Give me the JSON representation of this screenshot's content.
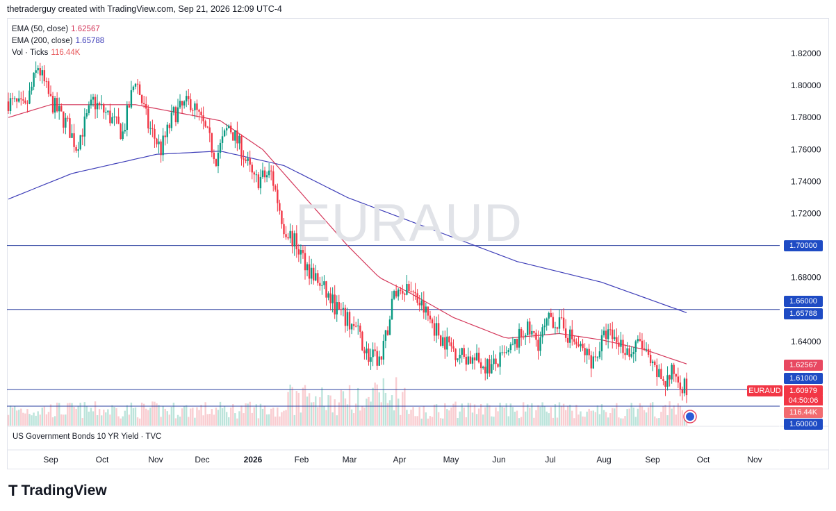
{
  "header": {
    "text": "thetraderguy created with TradingView.com, Sep 21, 2026 12:09 UTC-4"
  },
  "legend": [
    {
      "label": "EMA (50, close)",
      "value": "1.62567",
      "color": "#d4375a"
    },
    {
      "label": "EMA (200, close)",
      "value": "1.65788",
      "color": "#3d3db8"
    },
    {
      "label": "Vol · Ticks",
      "value": "116.44K",
      "color": "#e8575a"
    }
  ],
  "watermark": "EURAUD",
  "lower_pane_label": "US Government Bonds 10 YR Yield · TVC",
  "footer": {
    "brand": "TradingView"
  },
  "colors": {
    "up": "#089981",
    "down": "#f23645",
    "ema50": "#d4375a",
    "ema200": "#3d3db8",
    "hline": "#2a3f9f"
  },
  "price_tags": [
    {
      "name": "tag-1.70000",
      "text": "1.70000",
      "bg": "#1e4bc4",
      "price": 1.7
    },
    {
      "name": "tag-1.66000",
      "text": "1.66000",
      "bg": "#1e4bc4",
      "price": 1.66
    },
    {
      "name": "tag-1.65788",
      "text": "1.65788",
      "bg": "#1e4bc4",
      "price": 1.65788
    },
    {
      "name": "tag-1.62567",
      "text": "1.62567",
      "bg": "#e84861",
      "price": 1.62567
    },
    {
      "name": "tag-1.61000",
      "text": "1.61000",
      "bg": "#1e4bc4",
      "price": 1.61
    },
    {
      "name": "tag-1.60979",
      "text": "1.60979",
      "bg": "#f23645",
      "price": 1.60979
    },
    {
      "name": "tag-1.60000",
      "text": "1.60000",
      "bg": "#1e4bc4",
      "price": 1.6
    }
  ],
  "symbol_tag": "EURAUD",
  "countdown": "04:50:06",
  "volume_tag": "116.44K",
  "chart_data": {
    "type": "candlestick",
    "symbol": "EURAUD",
    "ylim": [
      1.6,
      1.83
    ],
    "y_ticks": [
      "1.82000",
      "1.80000",
      "1.78000",
      "1.76000",
      "1.74000",
      "1.72000",
      "1.68000",
      "1.64000"
    ],
    "x_ticks": [
      "Sep",
      "Oct",
      "Nov",
      "Dec",
      "2026",
      "Feb",
      "Mar",
      "Apr",
      "May",
      "Jun",
      "Jul",
      "Aug",
      "Sep",
      "Oct",
      "Nov"
    ],
    "x_ticks_bold": [
      "2026"
    ],
    "horizontal_lines": [
      1.7,
      1.66,
      1.61,
      1.6
    ],
    "anchors": [
      {
        "t": 0,
        "p": 1.79
      },
      {
        "t": 8,
        "p": 1.785
      },
      {
        "t": 14,
        "p": 1.812
      },
      {
        "t": 20,
        "p": 1.79
      },
      {
        "t": 28,
        "p": 1.775
      },
      {
        "t": 32,
        "p": 1.762
      },
      {
        "t": 40,
        "p": 1.79
      },
      {
        "t": 48,
        "p": 1.78
      },
      {
        "t": 54,
        "p": 1.77
      },
      {
        "t": 60,
        "p": 1.805
      },
      {
        "t": 66,
        "p": 1.775
      },
      {
        "t": 72,
        "p": 1.76
      },
      {
        "t": 78,
        "p": 1.782
      },
      {
        "t": 86,
        "p": 1.79
      },
      {
        "t": 92,
        "p": 1.775
      },
      {
        "t": 98,
        "p": 1.755
      },
      {
        "t": 104,
        "p": 1.775
      },
      {
        "t": 110,
        "p": 1.76
      },
      {
        "t": 116,
        "p": 1.74
      },
      {
        "t": 124,
        "p": 1.745
      },
      {
        "t": 130,
        "p": 1.712
      },
      {
        "t": 136,
        "p": 1.7
      },
      {
        "t": 142,
        "p": 1.685
      },
      {
        "t": 150,
        "p": 1.67
      },
      {
        "t": 158,
        "p": 1.655
      },
      {
        "t": 164,
        "p": 1.648
      },
      {
        "t": 170,
        "p": 1.63
      },
      {
        "t": 176,
        "p": 1.628
      },
      {
        "t": 182,
        "p": 1.67
      },
      {
        "t": 188,
        "p": 1.675
      },
      {
        "t": 196,
        "p": 1.66
      },
      {
        "t": 204,
        "p": 1.643
      },
      {
        "t": 212,
        "p": 1.633
      },
      {
        "t": 220,
        "p": 1.628
      },
      {
        "t": 228,
        "p": 1.624
      },
      {
        "t": 236,
        "p": 1.632
      },
      {
        "t": 244,
        "p": 1.648
      },
      {
        "t": 250,
        "p": 1.64
      },
      {
        "t": 256,
        "p": 1.655
      },
      {
        "t": 262,
        "p": 1.648
      },
      {
        "t": 270,
        "p": 1.635
      },
      {
        "t": 276,
        "p": 1.628
      },
      {
        "t": 282,
        "p": 1.645
      },
      {
        "t": 288,
        "p": 1.64
      },
      {
        "t": 294,
        "p": 1.632
      },
      {
        "t": 298,
        "p": 1.64
      },
      {
        "t": 304,
        "p": 1.622
      },
      {
        "t": 310,
        "p": 1.615
      },
      {
        "t": 314,
        "p": 1.621
      },
      {
        "t": 320,
        "p": 1.61
      }
    ],
    "ema50_anchors": [
      {
        "t": 0,
        "p": 1.78
      },
      {
        "t": 20,
        "p": 1.788
      },
      {
        "t": 60,
        "p": 1.788
      },
      {
        "t": 100,
        "p": 1.778
      },
      {
        "t": 120,
        "p": 1.76
      },
      {
        "t": 140,
        "p": 1.73
      },
      {
        "t": 160,
        "p": 1.7
      },
      {
        "t": 175,
        "p": 1.68
      },
      {
        "t": 190,
        "p": 1.67
      },
      {
        "t": 210,
        "p": 1.655
      },
      {
        "t": 235,
        "p": 1.642
      },
      {
        "t": 260,
        "p": 1.645
      },
      {
        "t": 280,
        "p": 1.641
      },
      {
        "t": 300,
        "p": 1.635
      },
      {
        "t": 320,
        "p": 1.626
      }
    ],
    "ema200_anchors": [
      {
        "t": 0,
        "p": 1.729
      },
      {
        "t": 30,
        "p": 1.745
      },
      {
        "t": 70,
        "p": 1.757
      },
      {
        "t": 100,
        "p": 1.759
      },
      {
        "t": 130,
        "p": 1.75
      },
      {
        "t": 160,
        "p": 1.73
      },
      {
        "t": 200,
        "p": 1.71
      },
      {
        "t": 240,
        "p": 1.69
      },
      {
        "t": 280,
        "p": 1.677
      },
      {
        "t": 320,
        "p": 1.658
      }
    ]
  }
}
